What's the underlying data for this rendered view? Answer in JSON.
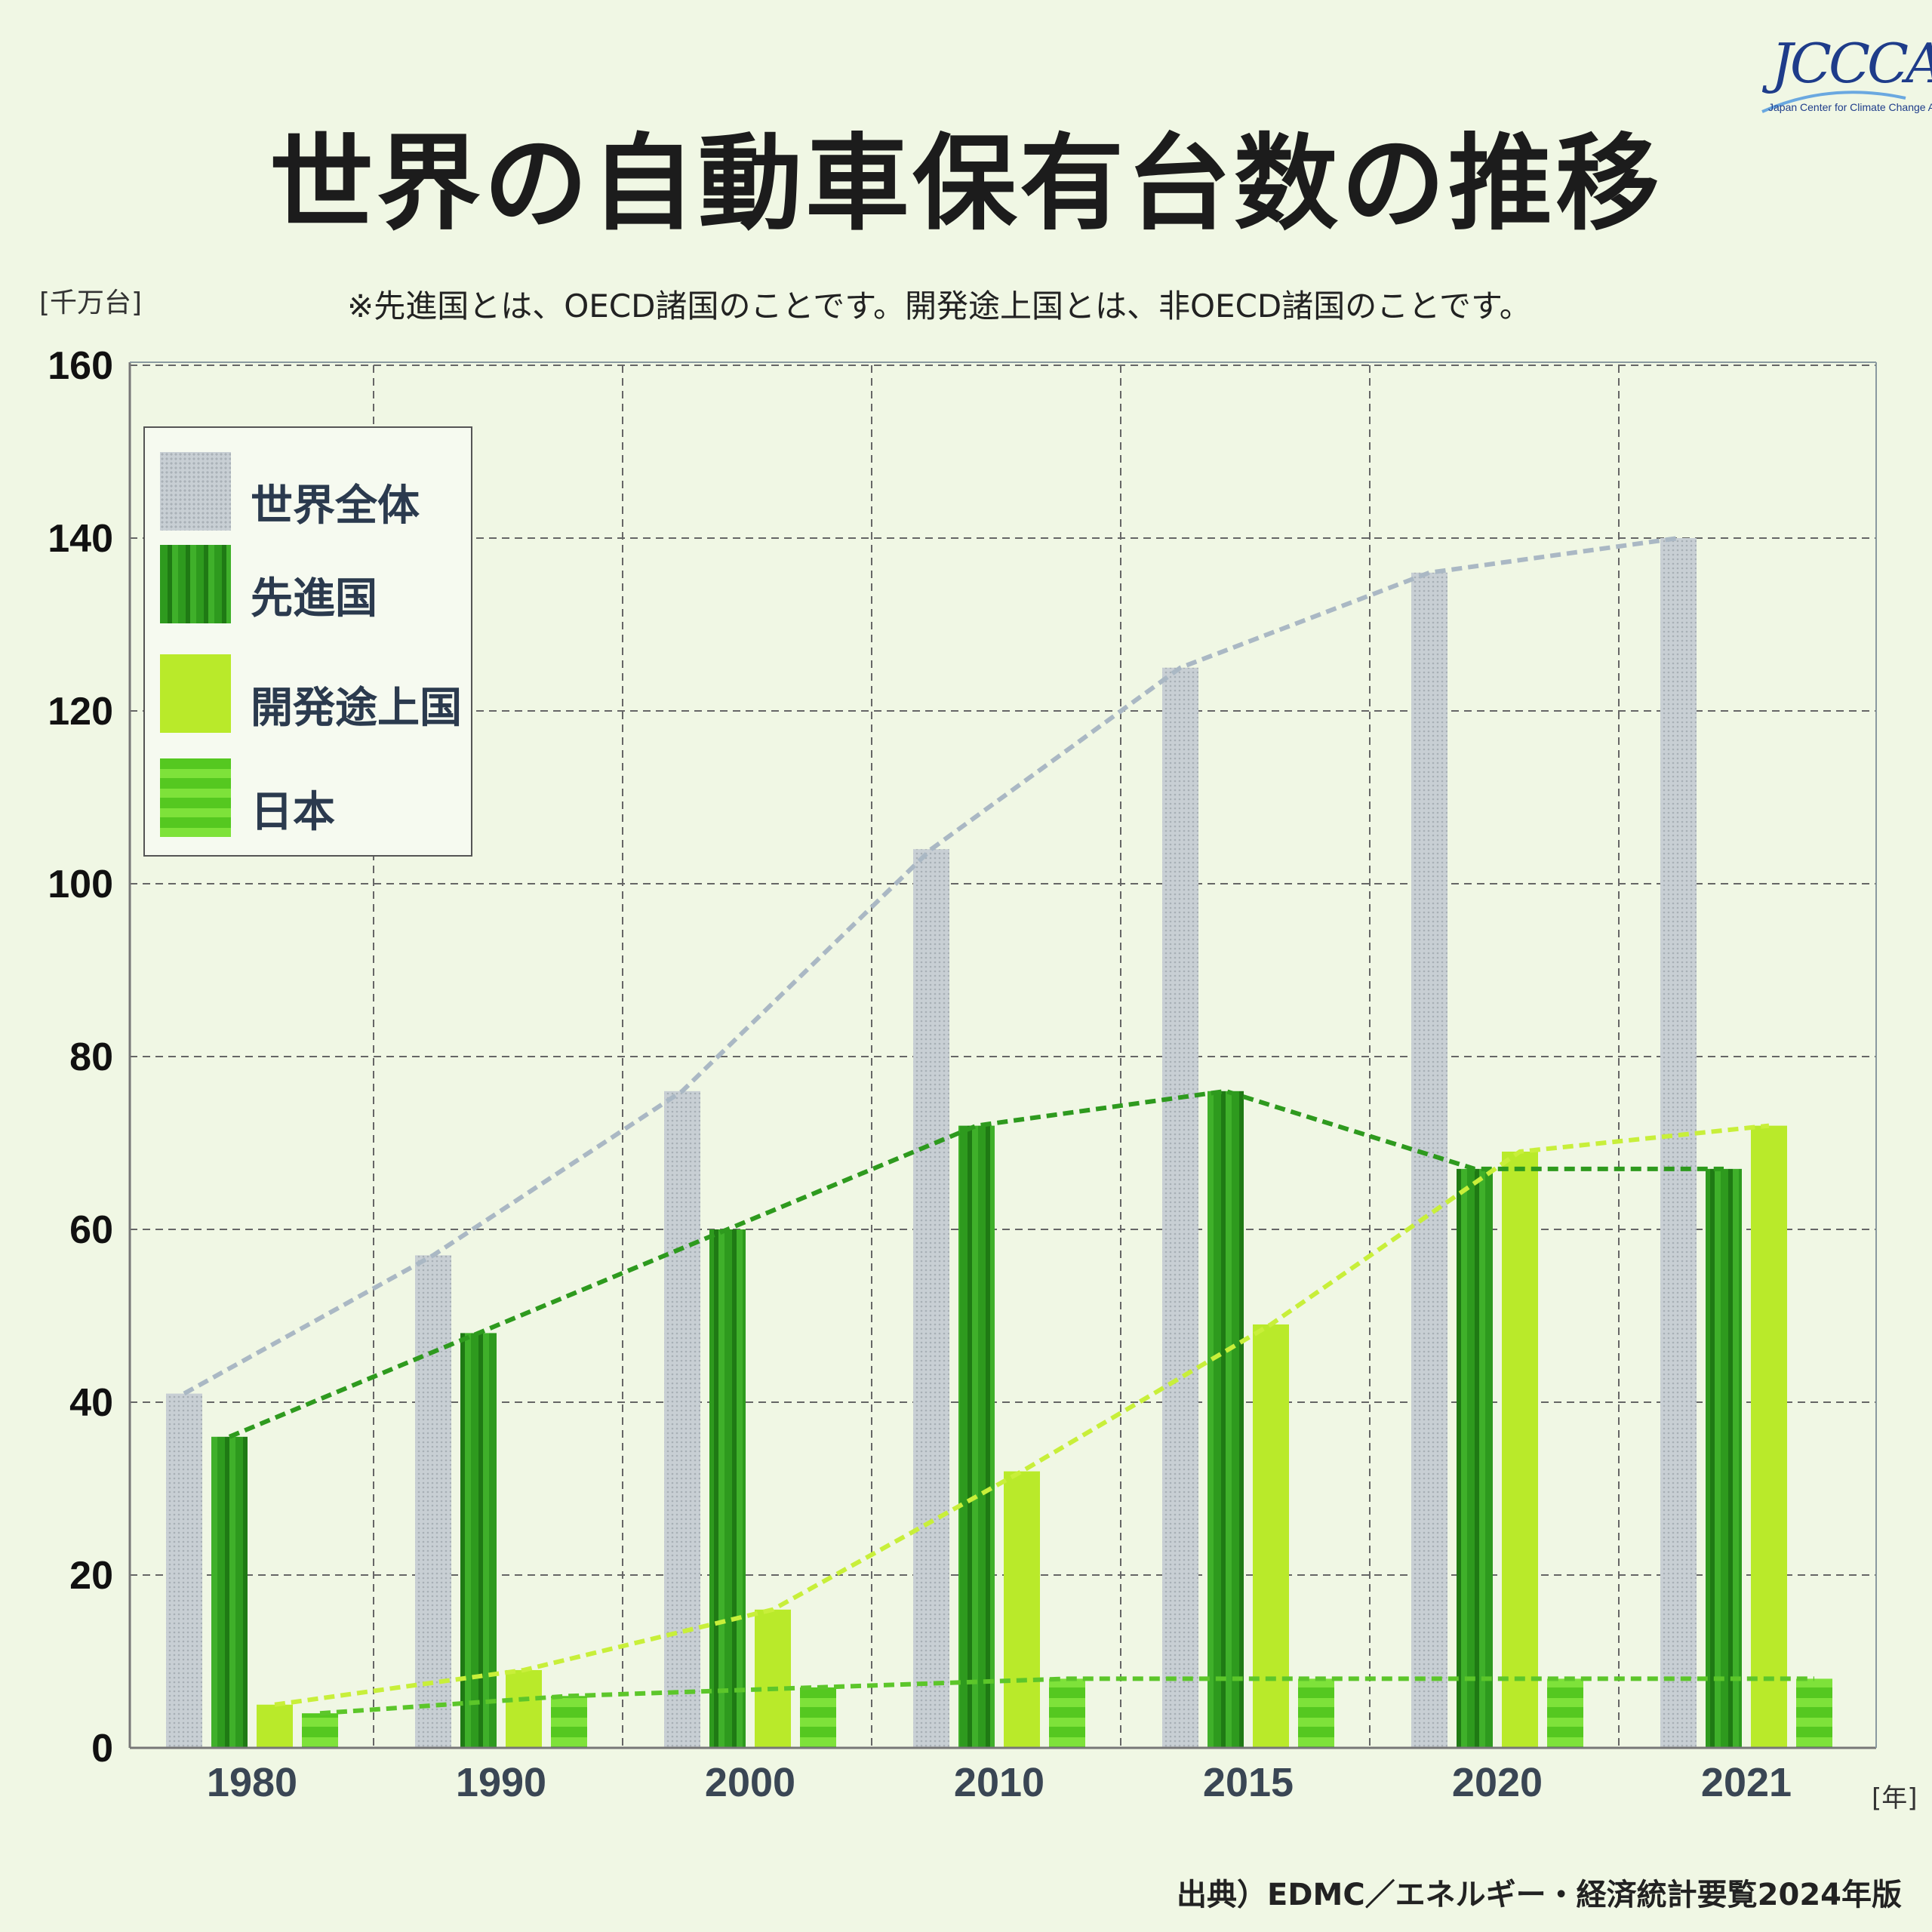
{
  "title": "世界の自動車保有台数の推移",
  "note": "※先進国とは、OECD諸国のことです。開発途上国とは、非OECD諸国のことです。",
  "logo": {
    "text": "JCCCA",
    "subtitle": "Japan Center for Climate Change Actions"
  },
  "source": "出典）EDMC／エネルギー・経済統計要覧2024年版",
  "colors": {
    "world": "#c8cfd4",
    "developed": "#2e9a1e",
    "developing": "#b9ea2a",
    "japan": "#5fd02a"
  },
  "chart_data": {
    "type": "bar",
    "categories": [
      "1980",
      "1990",
      "2000",
      "2010",
      "2015",
      "2020",
      "2021"
    ],
    "ylabel": "[千万台]",
    "xlabel": "[年]",
    "ylim": [
      0,
      160
    ],
    "yticks": [
      "0",
      "20",
      "40",
      "60",
      "80",
      "100",
      "120",
      "140",
      "160"
    ],
    "grid": true,
    "legend_position": "top-left",
    "series": [
      {
        "name": "世界全体",
        "key": "world",
        "values": [
          41,
          57,
          76,
          104,
          125,
          136,
          140
        ]
      },
      {
        "name": "先進国",
        "key": "developed",
        "values": [
          36,
          48,
          60,
          72,
          76,
          67,
          67
        ]
      },
      {
        "name": "開発途上国",
        "key": "developing",
        "values": [
          5,
          9,
          16,
          32,
          49,
          69,
          72
        ]
      },
      {
        "name": "日本",
        "key": "japan",
        "values": [
          4,
          6,
          7,
          8,
          8,
          8,
          8
        ]
      }
    ]
  }
}
